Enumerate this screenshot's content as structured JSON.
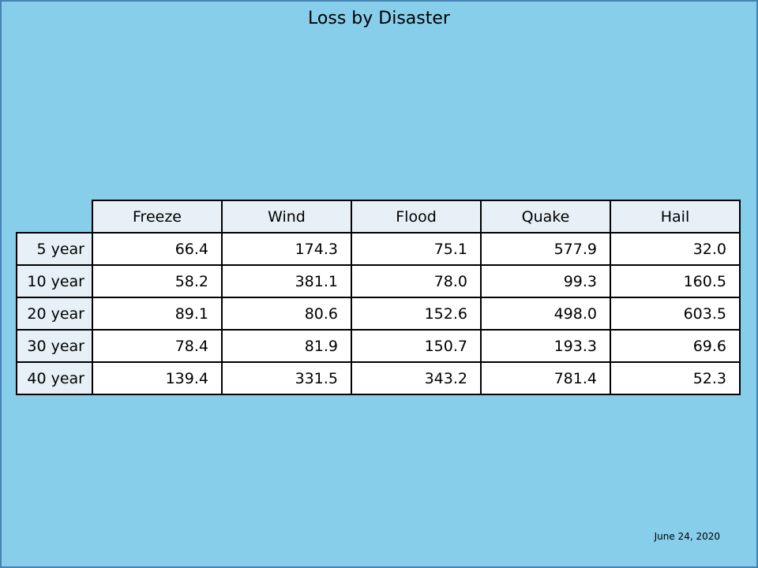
{
  "chart_data": {
    "type": "table",
    "title": "Loss by Disaster",
    "columns": [
      "Freeze",
      "Wind",
      "Flood",
      "Quake",
      "Hail"
    ],
    "rows": [
      {
        "label": "5 year",
        "values": [
          "66.4",
          "174.3",
          "75.1",
          "577.9",
          "32.0"
        ]
      },
      {
        "label": "10 year",
        "values": [
          "58.2",
          "381.1",
          "78.0",
          "99.3",
          "160.5"
        ]
      },
      {
        "label": "20 year",
        "values": [
          "89.1",
          "80.6",
          "152.6",
          "498.0",
          "603.5"
        ]
      },
      {
        "label": "30 year",
        "values": [
          "78.4",
          "81.9",
          "150.7",
          "193.3",
          "69.6"
        ]
      },
      {
        "label": "40 year",
        "values": [
          "139.4",
          "331.5",
          "343.2",
          "781.4",
          "52.3"
        ]
      }
    ]
  },
  "footer": {
    "date": "June 24, 2020"
  },
  "colors": {
    "background": "#87ceeb",
    "border": "#4682b4",
    "header_fill": "#e6f0f6",
    "cell_fill": "#ffffff"
  }
}
